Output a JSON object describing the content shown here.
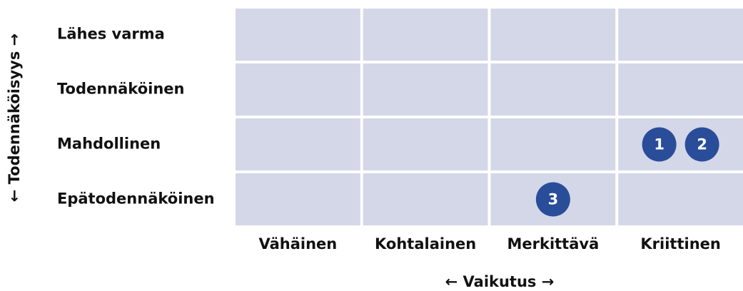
{
  "y_axis_label": "← Todennäköisyys →",
  "x_axis_label": "← Vaikutus →",
  "rows": [
    "Lähes varma",
    "Todennäköinen",
    "Mahdollinen",
    "Epätodennäköinen"
  ],
  "columns": [
    "Vähäinen",
    "Kohtalainen",
    "Merkittävä",
    "Kriittinen"
  ],
  "markers": [
    {
      "label": "1",
      "row": "Mahdollinen",
      "column": "Kriittinen"
    },
    {
      "label": "2",
      "row": "Mahdollinen",
      "column": "Kriittinen"
    },
    {
      "label": "3",
      "row": "Epätodennäköinen",
      "column": "Merkittävä"
    }
  ]
}
